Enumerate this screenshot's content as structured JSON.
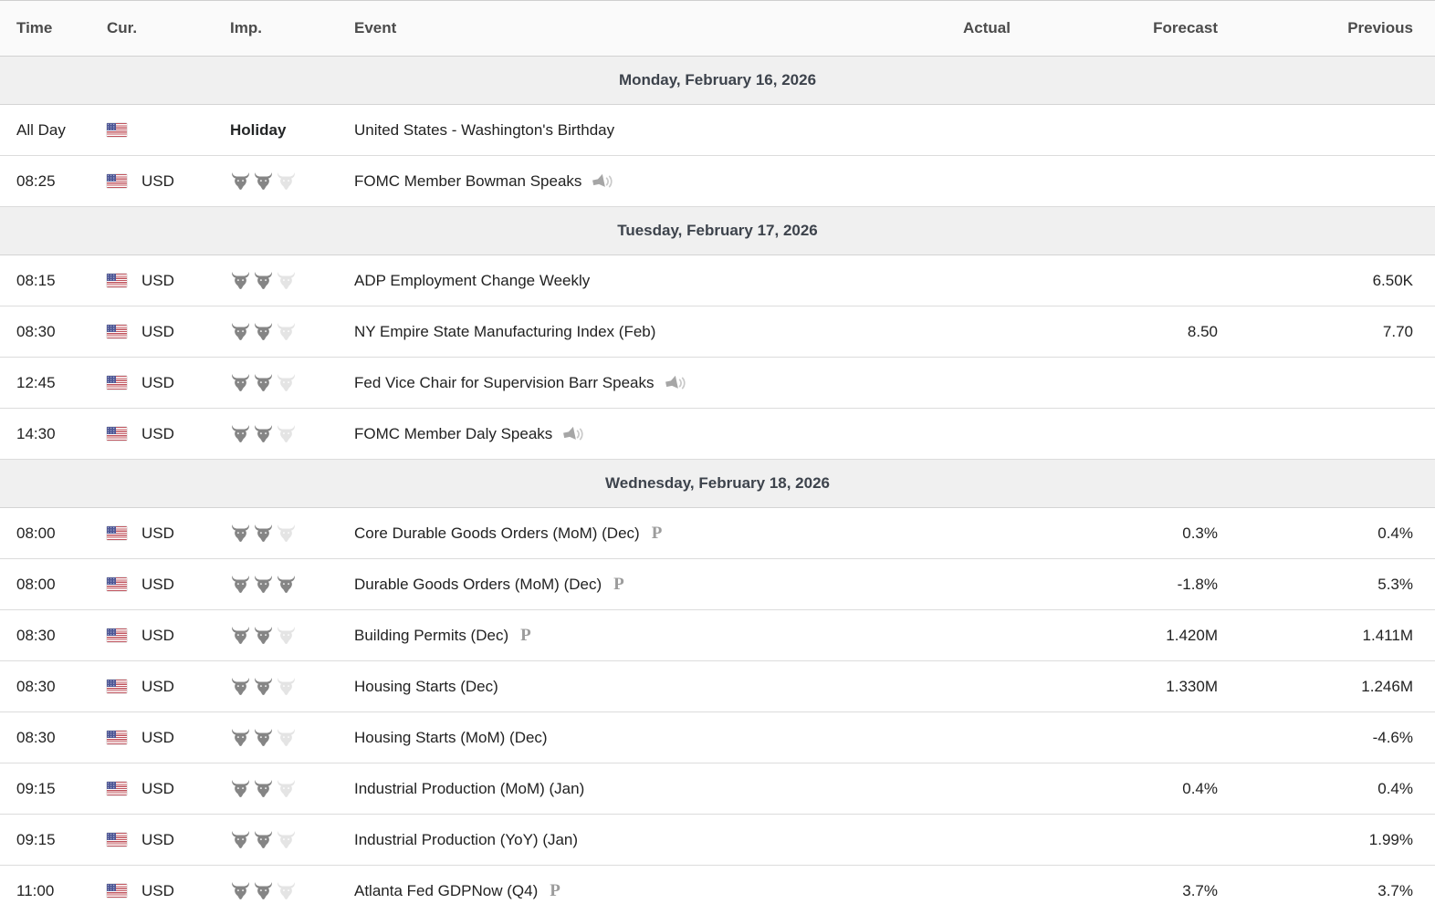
{
  "table": {
    "columns": {
      "time": "Time",
      "currency": "Cur.",
      "importance": "Imp.",
      "event": "Event",
      "actual": "Actual",
      "forecast": "Forecast",
      "previous": "Previous"
    }
  },
  "icons": {
    "importance": "bull-head-icon",
    "speech": "megaphone-speaker-icon",
    "preliminary": "serif-P-icon",
    "currency_flag": "us-flag-icon"
  },
  "strings": {
    "preliminary_marker": "P"
  },
  "colors": {
    "day_row_bg": "#f0f0f0",
    "header_row_bg": "#fafafa",
    "row_border": "#dcdcdc",
    "bull_filled": "#858585",
    "bull_empty": "#e4e4e4",
    "body_text": "#222222",
    "header_text": "#4b4b4b",
    "day_text": "#3d434c",
    "flag_red": "#c0545e",
    "flag_blue": "#4e5796"
  },
  "days": [
    {
      "label": "Monday, February 16, 2026",
      "events": [
        {
          "time": "All Day",
          "currency": "",
          "flag": true,
          "importance": "Holiday",
          "event": "United States - Washington's Birthday",
          "speech": false,
          "preliminary": false,
          "actual": "",
          "forecast": "",
          "previous": ""
        },
        {
          "time": "08:25",
          "currency": "USD",
          "flag": true,
          "importance": 2,
          "event": "FOMC Member Bowman Speaks",
          "speech": true,
          "preliminary": false,
          "actual": "",
          "forecast": "",
          "previous": ""
        }
      ]
    },
    {
      "label": "Tuesday, February 17, 2026",
      "events": [
        {
          "time": "08:15",
          "currency": "USD",
          "flag": true,
          "importance": 2,
          "event": "ADP Employment Change Weekly",
          "speech": false,
          "preliminary": false,
          "actual": "",
          "forecast": "",
          "previous": "6.50K"
        },
        {
          "time": "08:30",
          "currency": "USD",
          "flag": true,
          "importance": 2,
          "event": "NY Empire State Manufacturing Index (Feb)",
          "speech": false,
          "preliminary": false,
          "actual": "",
          "forecast": "8.50",
          "previous": "7.70"
        },
        {
          "time": "12:45",
          "currency": "USD",
          "flag": true,
          "importance": 2,
          "event": "Fed Vice Chair for Supervision Barr Speaks",
          "speech": true,
          "preliminary": false,
          "actual": "",
          "forecast": "",
          "previous": ""
        },
        {
          "time": "14:30",
          "currency": "USD",
          "flag": true,
          "importance": 2,
          "event": "FOMC Member Daly Speaks",
          "speech": true,
          "preliminary": false,
          "actual": "",
          "forecast": "",
          "previous": ""
        }
      ]
    },
    {
      "label": "Wednesday, February 18, 2026",
      "events": [
        {
          "time": "08:00",
          "currency": "USD",
          "flag": true,
          "importance": 2,
          "event": "Core Durable Goods Orders (MoM) (Dec)",
          "speech": false,
          "preliminary": true,
          "actual": "",
          "forecast": "0.3%",
          "previous": "0.4%"
        },
        {
          "time": "08:00",
          "currency": "USD",
          "flag": true,
          "importance": 3,
          "event": "Durable Goods Orders (MoM) (Dec)",
          "speech": false,
          "preliminary": true,
          "actual": "",
          "forecast": "-1.8%",
          "previous": "5.3%"
        },
        {
          "time": "08:30",
          "currency": "USD",
          "flag": true,
          "importance": 2,
          "event": "Building Permits (Dec)",
          "speech": false,
          "preliminary": true,
          "actual": "",
          "forecast": "1.420M",
          "previous": "1.411M"
        },
        {
          "time": "08:30",
          "currency": "USD",
          "flag": true,
          "importance": 2,
          "event": "Housing Starts (Dec)",
          "speech": false,
          "preliminary": false,
          "actual": "",
          "forecast": "1.330M",
          "previous": "1.246M"
        },
        {
          "time": "08:30",
          "currency": "USD",
          "flag": true,
          "importance": 2,
          "event": "Housing Starts (MoM) (Dec)",
          "speech": false,
          "preliminary": false,
          "actual": "",
          "forecast": "",
          "previous": "-4.6%"
        },
        {
          "time": "09:15",
          "currency": "USD",
          "flag": true,
          "importance": 2,
          "event": "Industrial Production (MoM) (Jan)",
          "speech": false,
          "preliminary": false,
          "actual": "",
          "forecast": "0.4%",
          "previous": "0.4%"
        },
        {
          "time": "09:15",
          "currency": "USD",
          "flag": true,
          "importance": 2,
          "event": "Industrial Production (YoY) (Jan)",
          "speech": false,
          "preliminary": false,
          "actual": "",
          "forecast": "",
          "previous": "1.99%"
        },
        {
          "time": "11:00",
          "currency": "USD",
          "flag": true,
          "importance": 2,
          "event": "Atlanta Fed GDPNow (Q4)",
          "speech": false,
          "preliminary": true,
          "actual": "",
          "forecast": "3.7%",
          "previous": "3.7%"
        }
      ]
    }
  ]
}
